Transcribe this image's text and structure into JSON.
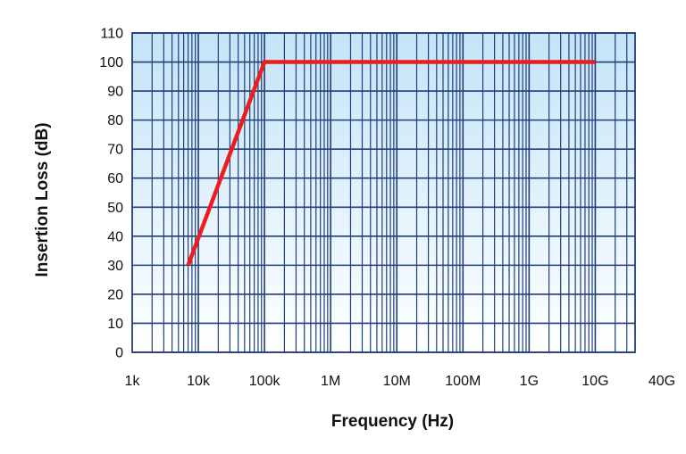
{
  "chart_data": {
    "type": "line",
    "xlabel": "Frequency (Hz)",
    "ylabel": "Insertion Loss (dB)",
    "x_scale": "log",
    "xlim": [
      1000,
      40000000000
    ],
    "ylim": [
      0,
      110
    ],
    "x_ticks": [
      {
        "value": 1000,
        "label": "1k"
      },
      {
        "value": 10000,
        "label": "10k"
      },
      {
        "value": 100000,
        "label": "100k"
      },
      {
        "value": 1000000,
        "label": "1M"
      },
      {
        "value": 10000000,
        "label": "10M"
      },
      {
        "value": 100000000,
        "label": "100M"
      },
      {
        "value": 1000000000,
        "label": "1G"
      },
      {
        "value": 10000000000,
        "label": "10G"
      },
      {
        "value": 40000000000,
        "label": "40G"
      }
    ],
    "y_ticks": [
      0,
      10,
      20,
      30,
      40,
      50,
      60,
      70,
      80,
      90,
      100,
      110
    ],
    "grid": true,
    "series": [
      {
        "color": "#ee1c1c",
        "x": [
          7000,
          100000,
          10000000000
        ],
        "y": [
          30,
          100,
          100
        ]
      }
    ],
    "background_gradient": [
      "#c4e4f8",
      "#ffffff"
    ],
    "grid_color": "#1f3e7a"
  }
}
